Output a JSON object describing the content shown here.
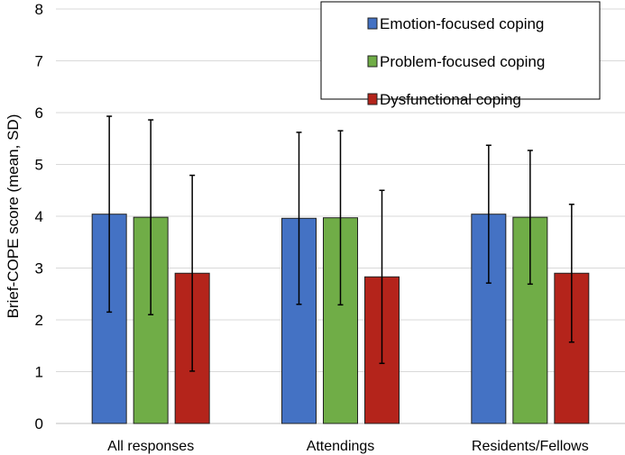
{
  "chart_data": {
    "type": "bar",
    "title": "",
    "xlabel": "",
    "ylabel": "Brief-COPE score (mean, SD)",
    "ylim": [
      0,
      8
    ],
    "yticks": [
      "0",
      "1",
      "2",
      "3",
      "4",
      "5",
      "6",
      "7",
      "8"
    ],
    "grid": true,
    "legend_position": "top-right",
    "categories": [
      "All responses",
      "Attendings",
      "Residents/Fellows"
    ],
    "series": [
      {
        "name": "Emotion-focused coping",
        "color": "#4472C4",
        "values": [
          4.04,
          3.96,
          4.04
        ],
        "sd": [
          1.89,
          1.66,
          1.33
        ]
      },
      {
        "name": "Problem-focused coping",
        "color": "#70AD47",
        "values": [
          3.98,
          3.97,
          3.98
        ],
        "sd": [
          1.88,
          1.68,
          1.29
        ]
      },
      {
        "name": "Dysfunctional coping",
        "color": "#B4241B",
        "values": [
          2.9,
          2.83,
          2.9
        ],
        "sd": [
          1.89,
          1.67,
          1.33
        ]
      }
    ]
  }
}
